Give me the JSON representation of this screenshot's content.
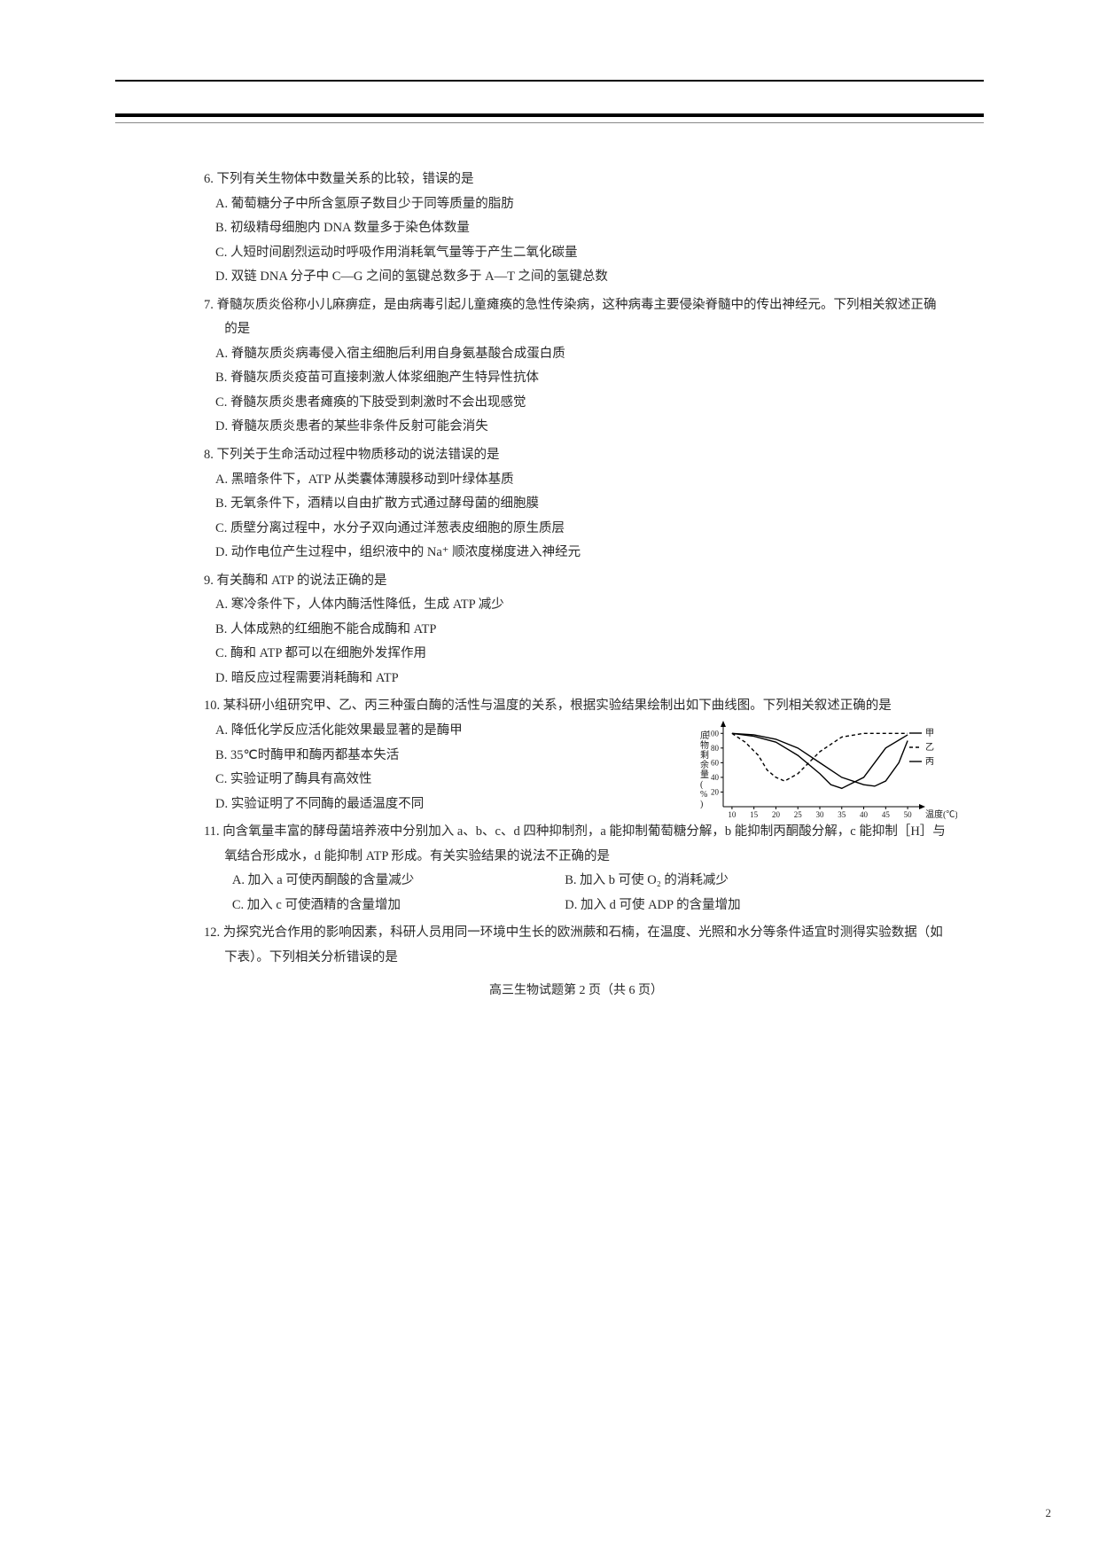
{
  "questions": {
    "q6": {
      "num": "6.",
      "stem": "下列有关生物体中数量关系的比较，错误的是",
      "A": "A. 葡萄糖分子中所含氢原子数目少于同等质量的脂肪",
      "B": "B. 初级精母细胞内 DNA 数量多于染色体数量",
      "C": "C. 人短时间剧烈运动时呼吸作用消耗氧气量等于产生二氧化碳量",
      "D": "D. 双链 DNA 分子中 C—G 之间的氢键总数多于 A—T 之间的氢键总数"
    },
    "q7": {
      "num": "7.",
      "stem": "脊髓灰质炎俗称小儿麻痹症，是由病毒引起儿童瘫痪的急性传染病，这种病毒主要侵染脊髓中的传出神经元。下列相关叙述正确的是",
      "A": "A. 脊髓灰质炎病毒侵入宿主细胞后利用自身氨基酸合成蛋白质",
      "B": "B. 脊髓灰质炎疫苗可直接刺激人体浆细胞产生特异性抗体",
      "C": "C. 脊髓灰质炎患者瘫痪的下肢受到刺激时不会出现感觉",
      "D": "D. 脊髓灰质炎患者的某些非条件反射可能会消失"
    },
    "q8": {
      "num": "8.",
      "stem": "下列关于生命活动过程中物质移动的说法错误的是",
      "A": "A. 黑暗条件下，ATP 从类囊体薄膜移动到叶绿体基质",
      "B": "B. 无氧条件下，酒精以自由扩散方式通过酵母菌的细胞膜",
      "C": "C. 质壁分离过程中，水分子双向通过洋葱表皮细胞的原生质层",
      "D": "D. 动作电位产生过程中，组织液中的 Na⁺ 顺浓度梯度进入神经元"
    },
    "q9": {
      "num": "9.",
      "stem": "有关酶和 ATP 的说法正确的是",
      "A": "A. 寒冷条件下，人体内酶活性降低，生成 ATP 减少",
      "B": "B. 人体成熟的红细胞不能合成酶和 ATP",
      "C": "C. 酶和 ATP 都可以在细胞外发挥作用",
      "D": "D. 暗反应过程需要消耗酶和 ATP"
    },
    "q10": {
      "num": "10.",
      "stem": "某科研小组研究甲、乙、丙三种蛋白酶的活性与温度的关系，根据实验结果绘制出如下曲线图。下列相关叙述正确的是",
      "A": "A. 降低化学反应活化能效果最显著的是酶甲",
      "B": "B. 35℃时酶甲和酶丙都基本失活",
      "C": "C. 实验证明了酶具有高效性",
      "D": "D. 实验证明了不同酶的最适温度不同"
    },
    "q11": {
      "num": "11.",
      "stem": "向含氧量丰富的酵母菌培养液中分别加入 a、b、c、d 四种抑制剂，a 能抑制葡萄糖分解，b 能抑制丙酮酸分解，c 能抑制［H］与氧结合形成水，d 能抑制 ATP 形成。有关实验结果的说法不正确的是",
      "A": "A. 加入 a 可使丙酮酸的含量减少",
      "B": "B. 加入 b 可使 O₂ 的消耗减少",
      "C": "C. 加入 c 可使酒精的含量增加",
      "D": "D. 加入 d 可使 ADP 的含量增加"
    },
    "q12": {
      "num": "12.",
      "stem": "为探究光合作用的影响因素，科研人员用同一环境中生长的欧洲蕨和石楠，在温度、光照和水分等条件适宜时测得实验数据（如下表）。下列相关分析错误的是"
    }
  },
  "chart": {
    "ylabel": "底物剩余量(%)",
    "xlabel": "温度(℃)",
    "yticks": [
      "20",
      "40",
      "60",
      "80",
      "100"
    ],
    "xticks": [
      "10",
      "15",
      "20",
      "25",
      "30",
      "35",
      "40",
      "45",
      "50"
    ],
    "legend": {
      "A": "甲",
      "B": "乙",
      "C": "丙"
    },
    "colors": {
      "axis": "#000000",
      "jia": "#000000",
      "yi": "#000000",
      "bing": "#000000",
      "text": "#1a1a1a"
    },
    "series": {
      "jia": [
        [
          10,
          100
        ],
        [
          15,
          96
        ],
        [
          20,
          88
        ],
        [
          25,
          70
        ],
        [
          30,
          45
        ],
        [
          32.5,
          30
        ],
        [
          35,
          25
        ],
        [
          40,
          40
        ],
        [
          45,
          80
        ],
        [
          50,
          98
        ]
      ],
      "yi": [
        [
          10,
          100
        ],
        [
          13,
          88
        ],
        [
          16,
          70
        ],
        [
          18,
          50
        ],
        [
          20,
          40
        ],
        [
          22,
          35
        ],
        [
          25,
          45
        ],
        [
          30,
          75
        ],
        [
          35,
          95
        ],
        [
          40,
          100
        ],
        [
          45,
          100
        ],
        [
          50,
          100
        ]
      ],
      "bing": [
        [
          10,
          100
        ],
        [
          15,
          98
        ],
        [
          20,
          92
        ],
        [
          25,
          80
        ],
        [
          30,
          60
        ],
        [
          35,
          40
        ],
        [
          40,
          30
        ],
        [
          42.5,
          28
        ],
        [
          45,
          35
        ],
        [
          48,
          60
        ],
        [
          50,
          90
        ]
      ]
    },
    "ylim": [
      0,
      110
    ],
    "xlim": [
      8,
      52
    ]
  },
  "footer": "高三生物试题第 2 页（共 6 页）",
  "page_num": "2"
}
